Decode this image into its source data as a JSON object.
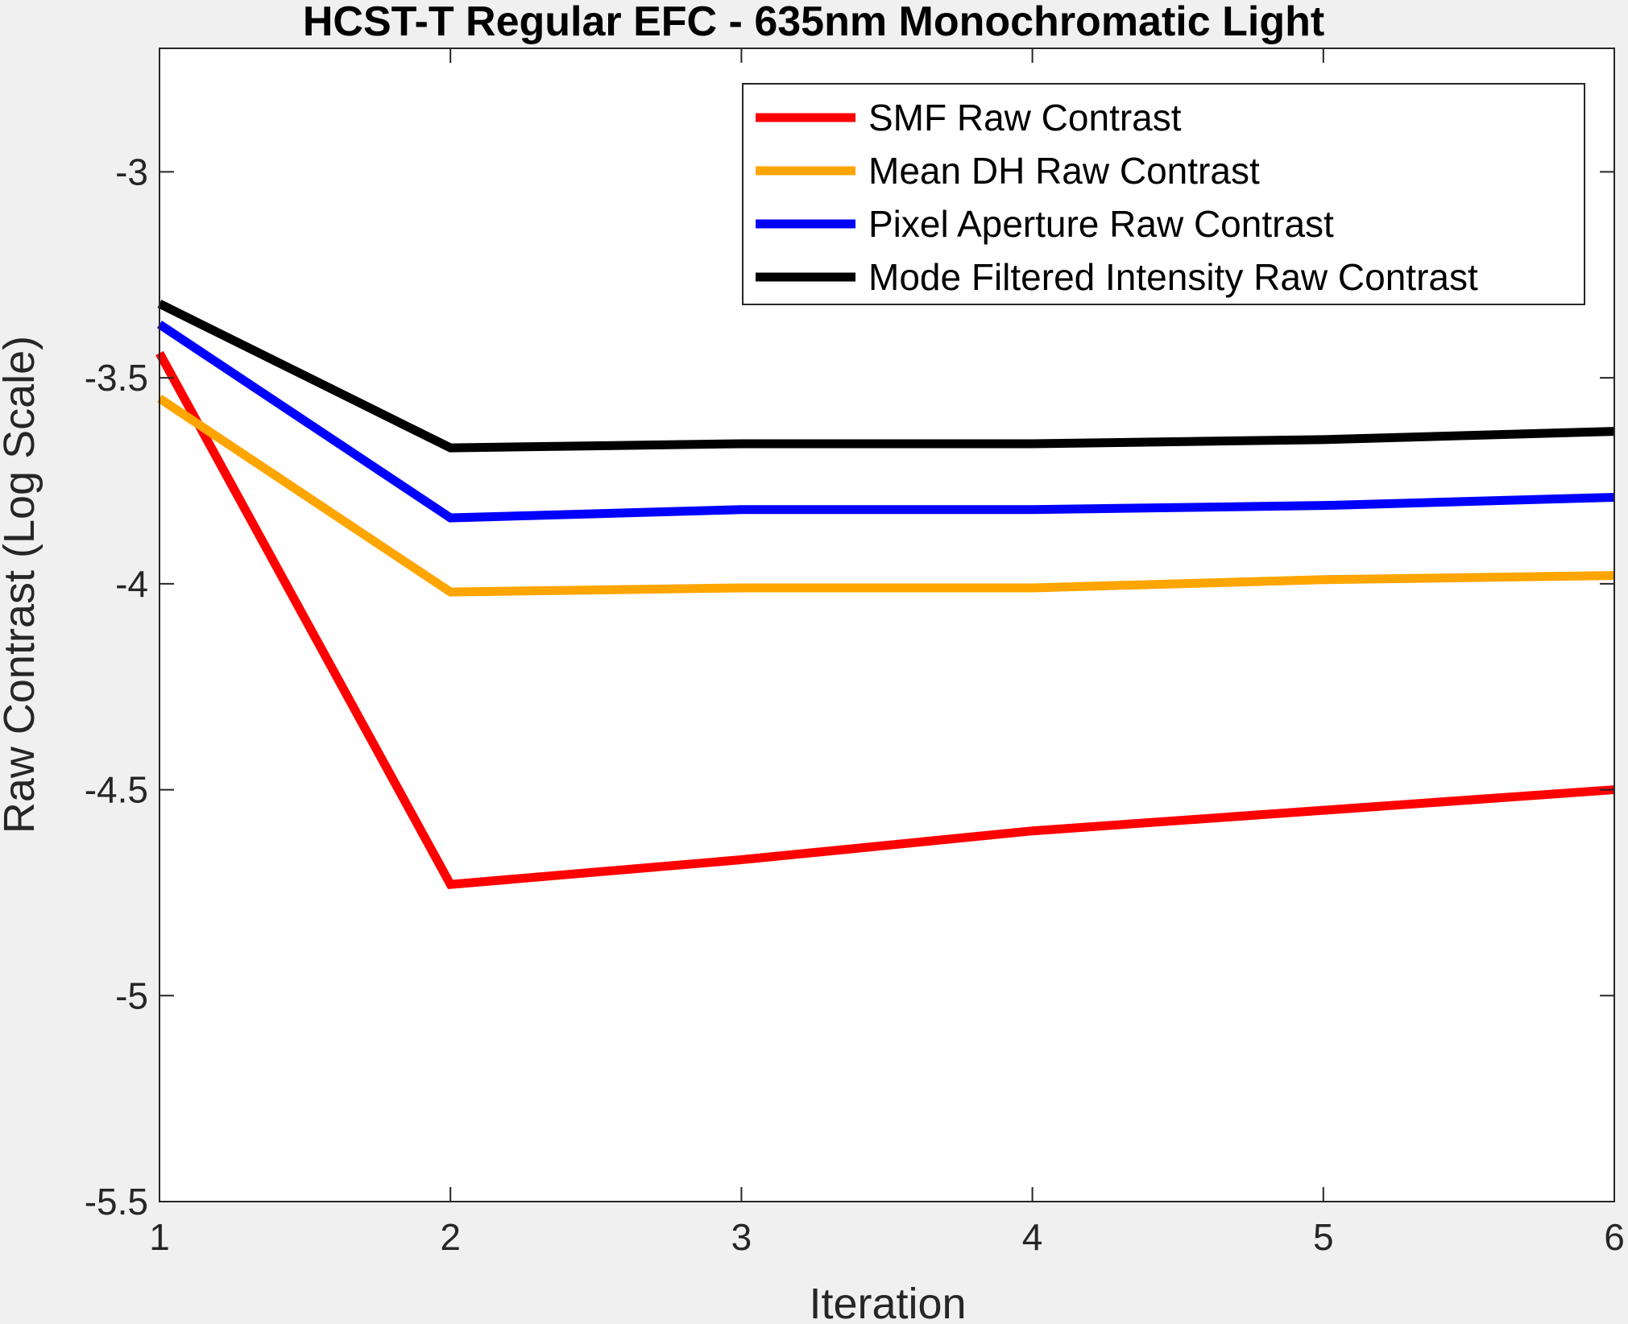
{
  "chart_data": {
    "type": "line",
    "title": "HCST-T Regular EFC - 635nm Monochromatic Light",
    "xlabel": "Iteration",
    "ylabel": "Raw Contrast (Log Scale)",
    "xlim": [
      1,
      6
    ],
    "ylim": [
      -5.5,
      -2.7
    ],
    "xticks": [
      1,
      2,
      3,
      4,
      5,
      6
    ],
    "xtick_labels": [
      "1",
      "2",
      "3",
      "4",
      "5",
      "6"
    ],
    "yticks": [
      -5.5,
      -5,
      -4.5,
      -4,
      -3.5,
      -3
    ],
    "ytick_labels": [
      "-5.5",
      "-5",
      "-4.5",
      "-4",
      "-3.5",
      "-3"
    ],
    "grid": false,
    "legend_position": "top-right",
    "x": [
      1,
      2,
      3,
      4,
      5,
      6
    ],
    "series": [
      {
        "name": "SMF Raw Contrast",
        "color": "#ff0000",
        "values": [
          -3.44,
          -4.73,
          -4.67,
          -4.6,
          -4.55,
          -4.5
        ]
      },
      {
        "name": "Mean DH Raw Contrast",
        "color": "#ffa500",
        "values": [
          -3.55,
          -4.02,
          -4.01,
          -4.01,
          -3.99,
          -3.98
        ]
      },
      {
        "name": "Pixel Aperture Raw Contrast",
        "color": "#0000ff",
        "values": [
          -3.37,
          -3.84,
          -3.82,
          -3.82,
          -3.81,
          -3.79
        ]
      },
      {
        "name": "Mode Filtered Intensity Raw Contrast",
        "color": "#000000",
        "values": [
          -3.32,
          -3.67,
          -3.66,
          -3.66,
          -3.65,
          -3.63
        ]
      }
    ]
  }
}
